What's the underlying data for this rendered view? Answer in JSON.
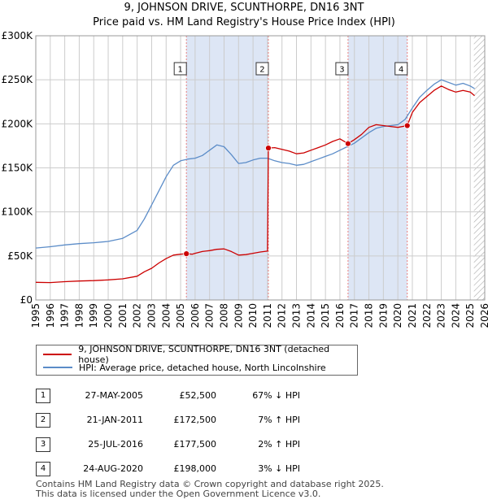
{
  "title": "9, JOHNSON DRIVE, SCUNTHORPE, DN16 3NT",
  "subtitle": "Price paid vs. HM Land Registry's House Price Index (HPI)",
  "colors": {
    "property": "#cc0000",
    "hpi": "#5b8cc8",
    "shade": "#dde6f5",
    "grid": "#cccccc",
    "marker_line": "#e88080"
  },
  "chart_data": {
    "type": "line",
    "title": "Price paid vs. HM Land Registry's House Price Index (HPI)",
    "xlabel": "",
    "ylabel": "",
    "xlim": [
      1995,
      2026
    ],
    "ylim": [
      0,
      300000
    ],
    "y_ticks": [
      0,
      50000,
      100000,
      150000,
      200000,
      250000,
      300000
    ],
    "y_tick_labels": [
      "£0",
      "£50K",
      "£100K",
      "£150K",
      "£200K",
      "£250K",
      "£300K"
    ],
    "x_ticks": [
      1995,
      1996,
      1997,
      1998,
      1999,
      2000,
      2001,
      2002,
      2003,
      2004,
      2005,
      2006,
      2007,
      2008,
      2009,
      2010,
      2011,
      2012,
      2013,
      2014,
      2015,
      2016,
      2017,
      2018,
      2019,
      2020,
      2021,
      2022,
      2023,
      2024,
      2025,
      2026
    ],
    "x_tick_labels": [
      "1995",
      "1996",
      "1997",
      "1998",
      "1999",
      "2000",
      "2001",
      "2002",
      "2003",
      "2004",
      "2005",
      "2006",
      "2007",
      "2008",
      "2009",
      "2010",
      "2011",
      "2012",
      "2013",
      "2014",
      "2015",
      "2016",
      "2017",
      "2018",
      "2019",
      "2020",
      "2021",
      "2022",
      "2023",
      "2024",
      "2025",
      "2026"
    ],
    "grid": true,
    "legend_position": "below",
    "shaded_ranges": [
      [
        2005.4,
        2011.06
      ],
      [
        2016.56,
        2020.65
      ]
    ],
    "future_hatch_from": 2025.25,
    "series": [
      {
        "name": "9, JOHNSON DRIVE, SCUNTHORPE, DN16 3NT (detached house)",
        "color": "#cc0000",
        "points": [
          [
            1995,
            20000
          ],
          [
            1996,
            19800
          ],
          [
            1997,
            20800
          ],
          [
            1998,
            21500
          ],
          [
            1999,
            22000
          ],
          [
            2000,
            22800
          ],
          [
            2001,
            24000
          ],
          [
            2002,
            27000
          ],
          [
            2002.5,
            32000
          ],
          [
            2003,
            36000
          ],
          [
            2003.5,
            42000
          ],
          [
            2004,
            47000
          ],
          [
            2004.5,
            51000
          ],
          [
            2005,
            52000
          ],
          [
            2005.4,
            52500
          ],
          [
            2005.8,
            52000
          ],
          [
            2006,
            53000
          ],
          [
            2006.5,
            55000
          ],
          [
            2007,
            56000
          ],
          [
            2007.5,
            57500
          ],
          [
            2008,
            58000
          ],
          [
            2008.5,
            55000
          ],
          [
            2009,
            51000
          ],
          [
            2009.5,
            51500
          ],
          [
            2010,
            53000
          ],
          [
            2010.5,
            54500
          ],
          [
            2011.0,
            55500
          ],
          [
            2011.06,
            172500
          ],
          [
            2011.5,
            173000
          ],
          [
            2012,
            171000
          ],
          [
            2012.5,
            169000
          ],
          [
            2013,
            166000
          ],
          [
            2013.5,
            167000
          ],
          [
            2014,
            170000
          ],
          [
            2014.5,
            173000
          ],
          [
            2015,
            176000
          ],
          [
            2015.5,
            180000
          ],
          [
            2016,
            183000
          ],
          [
            2016.56,
            177500
          ],
          [
            2017,
            182000
          ],
          [
            2017.5,
            188000
          ],
          [
            2018,
            196000
          ],
          [
            2018.5,
            199000
          ],
          [
            2019,
            198000
          ],
          [
            2019.5,
            197000
          ],
          [
            2020,
            196000
          ],
          [
            2020.65,
            198000
          ],
          [
            2021,
            213000
          ],
          [
            2021.5,
            224000
          ],
          [
            2022,
            231000
          ],
          [
            2022.5,
            238000
          ],
          [
            2023,
            243000
          ],
          [
            2023.5,
            239000
          ],
          [
            2024,
            236000
          ],
          [
            2024.5,
            238000
          ],
          [
            2025,
            236000
          ],
          [
            2025.3,
            232000
          ]
        ]
      },
      {
        "name": "HPI: Average price, detached house, North Lincolnshire",
        "color": "#5b8cc8",
        "points": [
          [
            1995,
            59000
          ],
          [
            1996,
            60500
          ],
          [
            1997,
            62500
          ],
          [
            1998,
            64000
          ],
          [
            1999,
            65000
          ],
          [
            2000,
            66500
          ],
          [
            2001,
            70000
          ],
          [
            2002,
            79000
          ],
          [
            2002.5,
            92000
          ],
          [
            2003,
            108000
          ],
          [
            2003.5,
            124000
          ],
          [
            2004,
            140000
          ],
          [
            2004.5,
            153000
          ],
          [
            2005,
            158000
          ],
          [
            2005.5,
            160000
          ],
          [
            2006,
            161000
          ],
          [
            2006.5,
            164000
          ],
          [
            2007,
            170000
          ],
          [
            2007.5,
            176000
          ],
          [
            2008,
            174000
          ],
          [
            2008.5,
            165000
          ],
          [
            2009,
            155000
          ],
          [
            2009.5,
            156000
          ],
          [
            2010,
            159000
          ],
          [
            2010.5,
            161000
          ],
          [
            2011,
            161000
          ],
          [
            2011.5,
            158000
          ],
          [
            2012,
            156000
          ],
          [
            2012.5,
            155000
          ],
          [
            2013,
            153000
          ],
          [
            2013.5,
            154000
          ],
          [
            2014,
            157000
          ],
          [
            2014.5,
            160000
          ],
          [
            2015,
            163000
          ],
          [
            2015.5,
            166000
          ],
          [
            2016,
            170000
          ],
          [
            2016.5,
            174000
          ],
          [
            2017,
            178000
          ],
          [
            2017.5,
            184000
          ],
          [
            2018,
            190000
          ],
          [
            2018.5,
            195000
          ],
          [
            2019,
            197000
          ],
          [
            2019.5,
            198000
          ],
          [
            2020,
            199000
          ],
          [
            2020.5,
            205000
          ],
          [
            2021,
            218000
          ],
          [
            2021.5,
            230000
          ],
          [
            2022,
            238000
          ],
          [
            2022.5,
            245000
          ],
          [
            2023,
            250000
          ],
          [
            2023.5,
            247000
          ],
          [
            2024,
            244000
          ],
          [
            2024.5,
            246000
          ],
          [
            2025,
            243000
          ],
          [
            2025.3,
            240000
          ]
        ]
      }
    ],
    "annotations": [
      {
        "label": "1",
        "x": 2005.4,
        "y": 52500
      },
      {
        "label": "2",
        "x": 2011.06,
        "y": 172500
      },
      {
        "label": "3",
        "x": 2016.56,
        "y": 177500
      },
      {
        "label": "4",
        "x": 2020.65,
        "y": 198000
      }
    ]
  },
  "legend": {
    "property_label": "9, JOHNSON DRIVE, SCUNTHORPE, DN16 3NT (detached house)",
    "hpi_label": "HPI: Average price, detached house, North Lincolnshire"
  },
  "sales": [
    {
      "num": "1",
      "date": "27-MAY-2005",
      "price": "£52,500",
      "hpi": "67% ↓ HPI"
    },
    {
      "num": "2",
      "date": "21-JAN-2011",
      "price": "£172,500",
      "hpi": "7% ↑ HPI"
    },
    {
      "num": "3",
      "date": "25-JUL-2016",
      "price": "£177,500",
      "hpi": "2% ↑ HPI"
    },
    {
      "num": "4",
      "date": "24-AUG-2020",
      "price": "£198,000",
      "hpi": "3% ↓ HPI"
    }
  ],
  "footer": {
    "line1": "Contains HM Land Registry data © Crown copyright and database right 2025.",
    "line2": "This data is licensed under the Open Government Licence v3.0."
  }
}
